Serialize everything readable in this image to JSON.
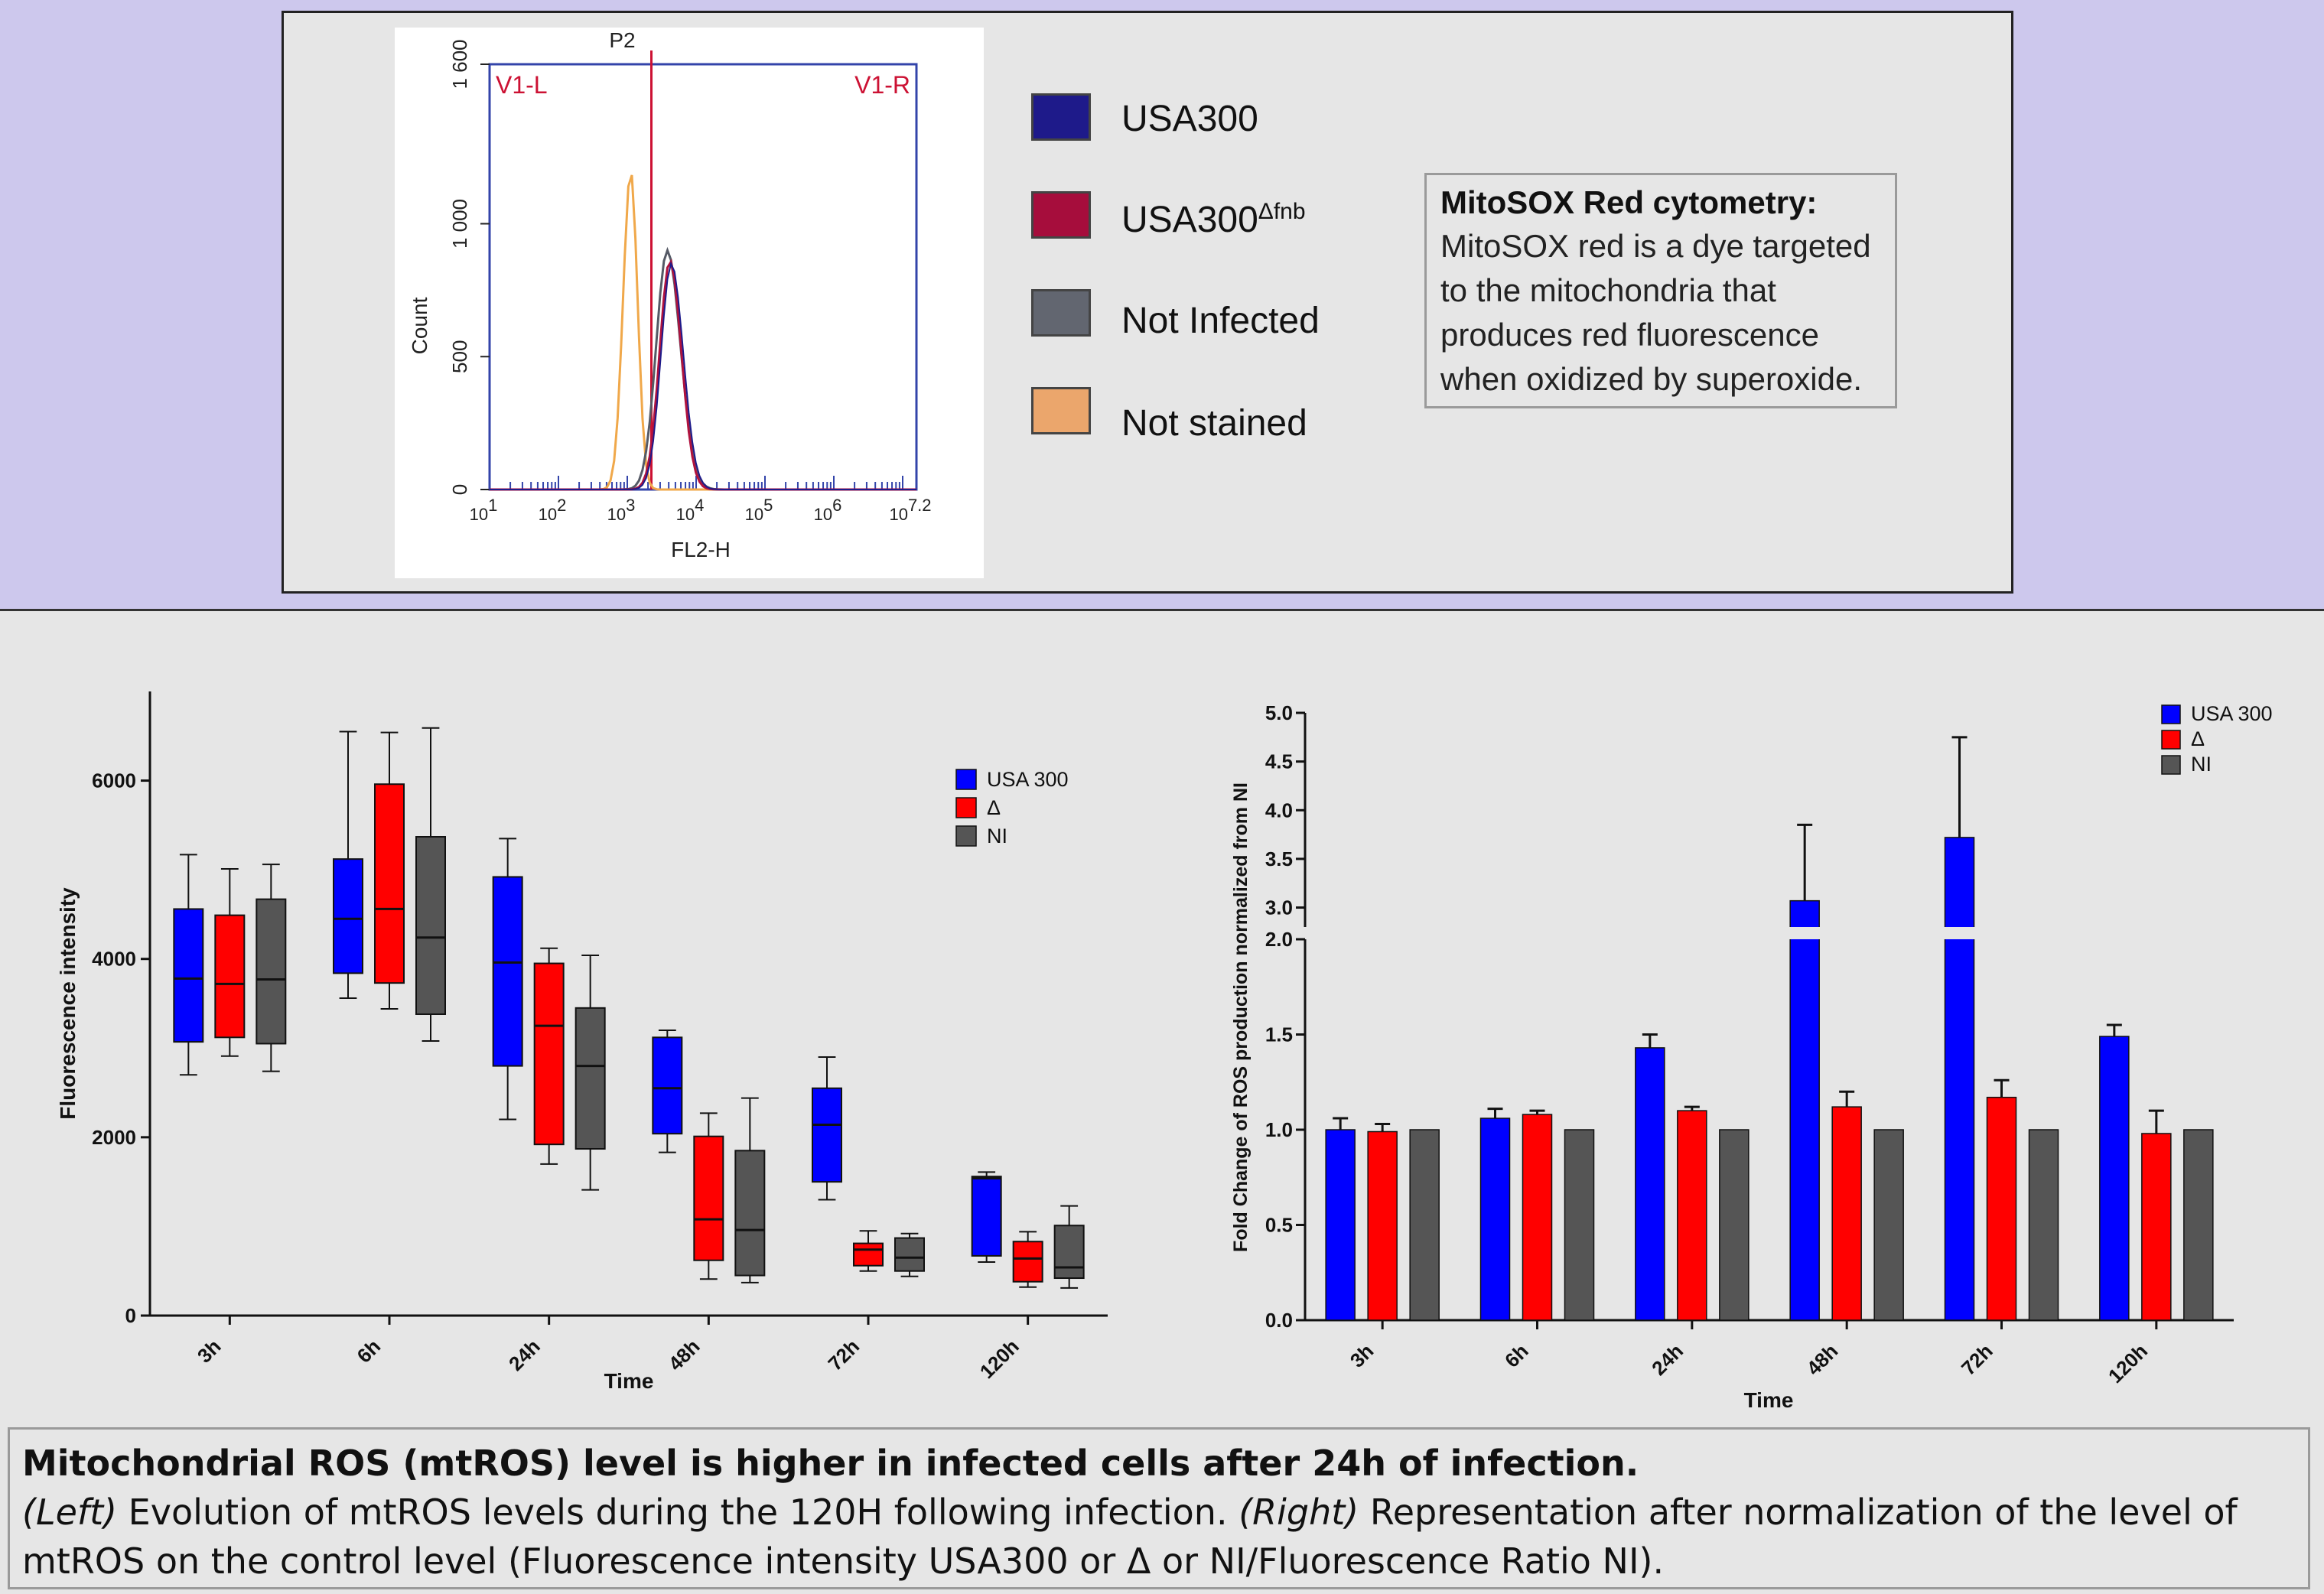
{
  "flow_cytometry": {
    "gate_label": "P2",
    "region_left": "V1-L",
    "region_right": "V1-R",
    "y_axis_label": "Count",
    "y_ticks": [
      "0",
      "500",
      "1 000",
      "1 600"
    ],
    "x_axis_label": "FL2-H",
    "x_ticks": [
      {
        "base": "10",
        "exp": "1"
      },
      {
        "base": "10",
        "exp": "2"
      },
      {
        "base": "10",
        "exp": "3"
      },
      {
        "base": "10",
        "exp": "4"
      },
      {
        "base": "10",
        "exp": "5"
      },
      {
        "base": "10",
        "exp": "6"
      },
      {
        "base": "10",
        "exp": "7.2"
      }
    ],
    "colors": {
      "usa300": "#1e1a8a",
      "mutant": "#b0123e",
      "ni": "#555a66",
      "unstained": "#f0a84a",
      "gate": "#cc1133"
    }
  },
  "legend": {
    "items": [
      {
        "label": "USA300",
        "sup": "",
        "color": "#1e1a8a"
      },
      {
        "label": "USA300",
        "sup": "Δfnb",
        "color": "#a60d3c"
      },
      {
        "label": "Not Infected",
        "sup": "",
        "color": "#626670"
      },
      {
        "label": "Not stained",
        "sup": "",
        "color": "#eba66c"
      }
    ]
  },
  "info_box": {
    "title": "MitoSOX Red cytometry:",
    "body_lines": [
      "MitoSOX red is a dye targeted",
      "to the mitochondria that",
      "produces red fluorescence",
      "when oxidized by superoxide."
    ]
  },
  "chart_data": [
    {
      "type": "box",
      "xlabel": "Time",
      "ylabel": "Fluorescence intensity",
      "ylim": [
        0,
        7000
      ],
      "y_ticks": [
        0,
        2000,
        4000,
        6000
      ],
      "categories": [
        "3h",
        "6h",
        "24h",
        "48h",
        "72h",
        "120h"
      ],
      "legend": [
        "USA 300",
        "Δ",
        "NI"
      ],
      "colors": [
        "#0000ff",
        "#ff0000",
        "#555555"
      ],
      "series": [
        {
          "name": "USA 300",
          "boxes": [
            {
              "min": 2700,
              "q1": 3070,
              "median": 3780,
              "q3": 4560,
              "max": 5170
            },
            {
              "min": 3560,
              "q1": 3840,
              "median": 4450,
              "q3": 5120,
              "max": 6550
            },
            {
              "min": 2200,
              "q1": 2800,
              "median": 3960,
              "q3": 4920,
              "max": 5350
            },
            {
              "min": 1830,
              "q1": 2040,
              "median": 2550,
              "q3": 3120,
              "max": 3200
            },
            {
              "min": 1300,
              "q1": 1500,
              "median": 2140,
              "q3": 2550,
              "max": 2900
            },
            {
              "min": 600,
              "q1": 670,
              "median": 1540,
              "q3": 1560,
              "max": 1610
            }
          ]
        },
        {
          "name": "Δ",
          "boxes": [
            {
              "min": 2910,
              "q1": 3120,
              "median": 3720,
              "q3": 4490,
              "max": 5010
            },
            {
              "min": 3440,
              "q1": 3730,
              "median": 4560,
              "q3": 5960,
              "max": 6540
            },
            {
              "min": 1700,
              "q1": 1920,
              "median": 3250,
              "q3": 3950,
              "max": 4120
            },
            {
              "min": 410,
              "q1": 620,
              "median": 1080,
              "q3": 2010,
              "max": 2270
            },
            {
              "min": 500,
              "q1": 560,
              "median": 740,
              "q3": 810,
              "max": 950
            },
            {
              "min": 320,
              "q1": 380,
              "median": 640,
              "q3": 830,
              "max": 940
            }
          ]
        },
        {
          "name": "NI",
          "boxes": [
            {
              "min": 2740,
              "q1": 3050,
              "median": 3770,
              "q3": 4670,
              "max": 5060
            },
            {
              "min": 3080,
              "q1": 3380,
              "median": 4240,
              "q3": 5370,
              "max": 6590
            },
            {
              "min": 1410,
              "q1": 1870,
              "median": 2800,
              "q3": 3450,
              "max": 4040
            },
            {
              "min": 370,
              "q1": 450,
              "median": 960,
              "q3": 1850,
              "max": 2440
            },
            {
              "min": 440,
              "q1": 500,
              "median": 650,
              "q3": 870,
              "max": 920
            },
            {
              "min": 310,
              "q1": 420,
              "median": 540,
              "q3": 1010,
              "max": 1230
            }
          ]
        }
      ]
    },
    {
      "type": "bar",
      "xlabel": "Time",
      "ylabel": "Fold Change of ROS production normalized from NI",
      "axis_break": {
        "lower": [
          0,
          2.0
        ],
        "upper": [
          2.8,
          5.0
        ]
      },
      "y_ticks_lower": [
        "0.0",
        "0.5",
        "1.0",
        "1.5",
        "2.0"
      ],
      "y_ticks_upper": [
        "3.0",
        "3.5",
        "4.0",
        "4.5",
        "5.0"
      ],
      "categories": [
        "3h",
        "6h",
        "24h",
        "48h",
        "72h",
        "120h"
      ],
      "legend": [
        "USA 300",
        "Δ",
        "NI"
      ],
      "colors": [
        "#0000ff",
        "#ff0000",
        "#555555"
      ],
      "series": [
        {
          "name": "USA 300",
          "values": [
            1.0,
            1.06,
            1.43,
            3.07,
            3.72,
            1.49
          ],
          "errors": [
            0.06,
            0.05,
            0.07,
            0.78,
            1.03,
            0.06
          ]
        },
        {
          "name": "Δ",
          "values": [
            0.99,
            1.08,
            1.1,
            1.12,
            1.17,
            0.98
          ],
          "errors": [
            0.04,
            0.02,
            0.02,
            0.08,
            0.09,
            0.12
          ]
        },
        {
          "name": "NI",
          "values": [
            1.0,
            1.0,
            1.0,
            1.0,
            1.0,
            1.0
          ],
          "errors": [
            0,
            0,
            0,
            0,
            0,
            0
          ]
        }
      ]
    }
  ],
  "caption": {
    "title": "Mitochondrial ROS (mtROS) level is higher in infected cells after 24h of infection.",
    "left_label": "(Left)",
    "left_text": " Evolution of mtROS levels during the 120H following infection. ",
    "right_label": "(Right)",
    "right_text": " Representation after normalization of the level of mtROS on the control level (Fluorescence intensity USA300 or Δ or NI/Fluorescence Ratio NI)."
  }
}
